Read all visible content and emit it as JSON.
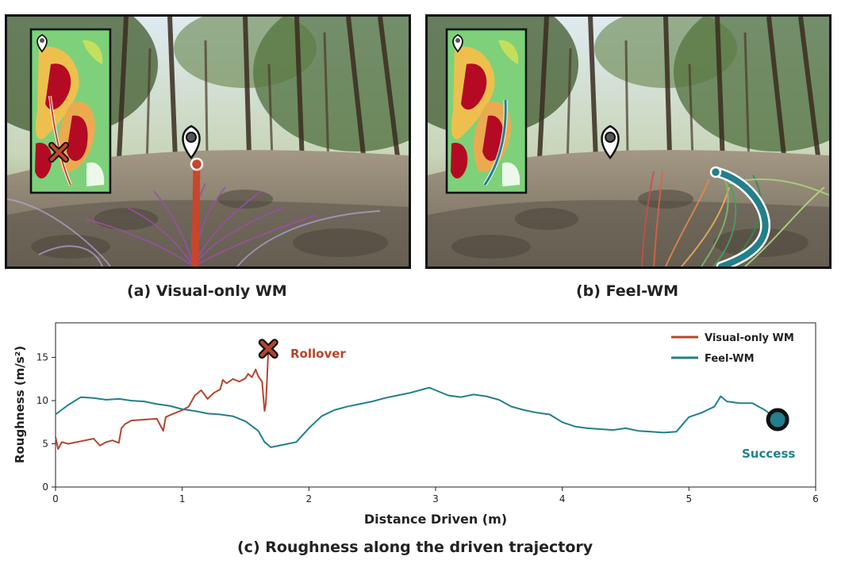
{
  "panels": {
    "a": {
      "caption": "(a) Visual-only WM",
      "outcome": "rollover"
    },
    "b": {
      "caption": "(b) Feel-WM",
      "outcome": "success"
    }
  },
  "caption_c": "(c) Roughness along the driven trajectory",
  "colors": {
    "visual_only": "#b5452f",
    "feel_wm": "#227f8c",
    "rough_high": "#b8001f",
    "rough_mid": "#f2c04b",
    "rough_low": "#4cc46a"
  },
  "chart_data": {
    "type": "line",
    "title": "",
    "xlabel": "Distance Driven (m)",
    "ylabel": "Roughness (m/s²)",
    "xlim": [
      0,
      6
    ],
    "ylim": [
      0,
      19
    ],
    "xticks": [
      0,
      1,
      2,
      3,
      4,
      5,
      6
    ],
    "yticks": [
      0,
      5,
      10,
      15
    ],
    "grid": false,
    "legend_position": "top-right",
    "series": [
      {
        "name": "Visual-only WM",
        "color": "#b5452f",
        "x": [
          0,
          0.02,
          0.05,
          0.1,
          0.2,
          0.3,
          0.35,
          0.4,
          0.45,
          0.5,
          0.52,
          0.55,
          0.6,
          0.7,
          0.8,
          0.85,
          0.87,
          0.9,
          0.95,
          1.0,
          1.05,
          1.1,
          1.15,
          1.2,
          1.25,
          1.3,
          1.32,
          1.35,
          1.4,
          1.45,
          1.5,
          1.52,
          1.55,
          1.58,
          1.6,
          1.63,
          1.65,
          1.66,
          1.67,
          1.68
        ],
        "y": [
          5.8,
          4.4,
          5.2,
          5.0,
          5.3,
          5.6,
          4.8,
          5.2,
          5.4,
          5.1,
          6.8,
          7.3,
          7.7,
          7.8,
          7.9,
          6.5,
          8.1,
          8.3,
          8.6,
          8.9,
          9.3,
          10.6,
          11.2,
          10.2,
          10.9,
          11.3,
          12.4,
          12.0,
          12.5,
          12.2,
          12.6,
          13.1,
          12.7,
          13.6,
          12.8,
          12.2,
          8.8,
          9.6,
          12.5,
          16.0
        ]
      },
      {
        "name": "Feel-WM",
        "color": "#227f8c",
        "x": [
          0,
          0.1,
          0.2,
          0.3,
          0.4,
          0.5,
          0.6,
          0.7,
          0.8,
          0.9,
          1.0,
          1.1,
          1.2,
          1.3,
          1.4,
          1.5,
          1.6,
          1.65,
          1.7,
          1.8,
          1.9,
          2.0,
          2.1,
          2.2,
          2.3,
          2.4,
          2.5,
          2.6,
          2.7,
          2.8,
          2.9,
          2.95,
          3.0,
          3.1,
          3.2,
          3.3,
          3.4,
          3.5,
          3.6,
          3.7,
          3.8,
          3.9,
          4.0,
          4.1,
          4.2,
          4.3,
          4.4,
          4.5,
          4.6,
          4.7,
          4.8,
          4.9,
          5.0,
          5.1,
          5.2,
          5.25,
          5.3,
          5.4,
          5.5,
          5.6,
          5.7
        ],
        "y": [
          8.4,
          9.5,
          10.4,
          10.3,
          10.1,
          10.2,
          10.0,
          9.9,
          9.6,
          9.4,
          9.0,
          8.8,
          8.5,
          8.4,
          8.2,
          7.6,
          6.5,
          5.2,
          4.6,
          4.9,
          5.2,
          6.8,
          8.2,
          8.9,
          9.3,
          9.6,
          9.9,
          10.3,
          10.6,
          10.9,
          11.3,
          11.5,
          11.2,
          10.6,
          10.4,
          10.7,
          10.5,
          10.1,
          9.3,
          8.9,
          8.6,
          8.4,
          7.5,
          7.0,
          6.8,
          6.7,
          6.6,
          6.8,
          6.5,
          6.4,
          6.3,
          6.4,
          8.1,
          8.6,
          9.3,
          10.5,
          9.9,
          9.7,
          9.7,
          8.9,
          7.8
        ]
      }
    ],
    "annotations": [
      {
        "text": "Rollover",
        "x": 1.68,
        "y": 16.0,
        "color": "#b5452f",
        "marker": "cross"
      },
      {
        "text": "Success",
        "x": 5.7,
        "y": 7.8,
        "color": "#227f8c",
        "marker": "circle"
      }
    ]
  }
}
